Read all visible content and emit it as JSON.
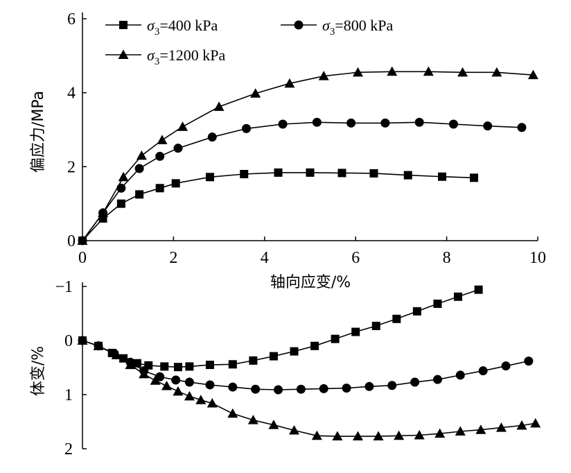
{
  "chart_data": [
    {
      "type": "line",
      "xlabel": "轴向应变/%",
      "ylabel": "偏应力/MPa",
      "xlim": [
        0,
        10
      ],
      "ylim": [
        0,
        6
      ],
      "xticks": [
        "0",
        "2",
        "4",
        "6",
        "8",
        "10"
      ],
      "yticks": [
        "0",
        "2",
        "4",
        "6"
      ],
      "legend": "top-left",
      "series": [
        {
          "name_prefix": "σ",
          "name_sub": "3",
          "name_suffix": "=400 kPa",
          "marker": "square",
          "x": [
            0,
            0.45,
            0.85,
            1.25,
            1.7,
            2.05,
            2.8,
            3.55,
            4.3,
            5.0,
            5.7,
            6.4,
            7.15,
            7.9,
            8.6
          ],
          "y": [
            0,
            0.6,
            1.0,
            1.25,
            1.42,
            1.55,
            1.72,
            1.8,
            1.84,
            1.84,
            1.83,
            1.82,
            1.77,
            1.73,
            1.7
          ]
        },
        {
          "name_prefix": "σ",
          "name_sub": "3",
          "name_suffix": "=800 kPa",
          "marker": "circle",
          "x": [
            0,
            0.45,
            0.85,
            1.25,
            1.7,
            2.1,
            2.85,
            3.6,
            4.4,
            5.15,
            5.9,
            6.65,
            7.4,
            8.15,
            8.9,
            9.65
          ],
          "y": [
            0,
            0.75,
            1.42,
            1.95,
            2.28,
            2.5,
            2.8,
            3.03,
            3.15,
            3.2,
            3.18,
            3.18,
            3.2,
            3.15,
            3.1,
            3.06
          ]
        },
        {
          "name_prefix": "σ",
          "name_sub": "3",
          "name_suffix": "=1200 kPa",
          "marker": "triangle",
          "x": [
            0,
            0.45,
            0.9,
            1.3,
            1.75,
            2.2,
            3.0,
            3.8,
            4.55,
            5.3,
            6.05,
            6.8,
            7.6,
            8.35,
            9.1,
            9.9
          ],
          "y": [
            0,
            0.75,
            1.72,
            2.3,
            2.72,
            3.08,
            3.62,
            3.98,
            4.25,
            4.45,
            4.55,
            4.57,
            4.57,
            4.55,
            4.55,
            4.48
          ]
        }
      ]
    },
    {
      "type": "line",
      "xlabel": "",
      "ylabel": "体变/%",
      "xlim": [
        0,
        10
      ],
      "ylim": [
        2,
        -1
      ],
      "inverted_y": true,
      "yticks": [
        "−1",
        "0",
        "1",
        "2"
      ],
      "series": [
        {
          "marker": "square",
          "x": [
            0,
            0.35,
            0.65,
            0.9,
            1.2,
            1.45,
            1.8,
            2.1,
            2.35,
            2.8,
            3.3,
            3.75,
            4.2,
            4.65,
            5.1,
            5.55,
            6.0,
            6.45,
            6.9,
            7.35,
            7.8,
            8.25,
            8.7
          ],
          "y": [
            0,
            0.1,
            0.23,
            0.33,
            0.42,
            0.46,
            0.48,
            0.49,
            0.48,
            0.45,
            0.44,
            0.37,
            0.29,
            0.2,
            0.1,
            -0.03,
            -0.16,
            -0.27,
            -0.4,
            -0.54,
            -0.68,
            -0.81,
            -0.94
          ]
        },
        {
          "marker": "circle",
          "x": [
            0,
            0.35,
            0.7,
            1.05,
            1.35,
            1.7,
            2.05,
            2.35,
            2.8,
            3.3,
            3.8,
            4.3,
            4.8,
            5.3,
            5.8,
            6.3,
            6.8,
            7.3,
            7.8,
            8.3,
            8.8,
            9.3,
            9.8
          ],
          "y": [
            0,
            0.1,
            0.24,
            0.4,
            0.56,
            0.67,
            0.73,
            0.77,
            0.82,
            0.86,
            0.9,
            0.91,
            0.9,
            0.89,
            0.88,
            0.85,
            0.83,
            0.77,
            0.72,
            0.64,
            0.56,
            0.47,
            0.38
          ]
        },
        {
          "marker": "triangle",
          "x": [
            0,
            0.35,
            0.75,
            1.05,
            1.35,
            1.6,
            1.85,
            2.1,
            2.35,
            2.6,
            2.85,
            3.3,
            3.75,
            4.2,
            4.65,
            5.15,
            5.6,
            6.05,
            6.5,
            6.95,
            7.4,
            7.85,
            8.3,
            8.75,
            9.2,
            9.65,
            9.95
          ],
          "y": [
            0,
            0.1,
            0.27,
            0.45,
            0.62,
            0.74,
            0.84,
            0.94,
            1.03,
            1.1,
            1.16,
            1.35,
            1.47,
            1.56,
            1.66,
            1.76,
            1.77,
            1.77,
            1.77,
            1.76,
            1.75,
            1.72,
            1.68,
            1.65,
            1.61,
            1.57,
            1.53
          ]
        }
      ]
    }
  ]
}
